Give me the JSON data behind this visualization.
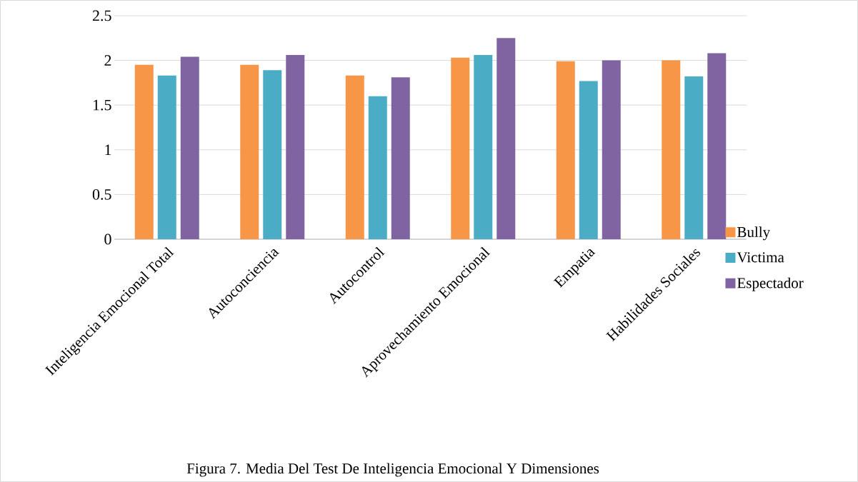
{
  "chart_data": {
    "type": "bar",
    "categories": [
      "Inteligencia Emocional Total",
      "Autoconciencia",
      "Autocontrol",
      "Aprovechamiento Emocional",
      "Empatia",
      "Habilidades Sociales"
    ],
    "series": [
      {
        "name": "Bully",
        "color": "#f79646",
        "values": [
          1.95,
          1.95,
          1.83,
          2.03,
          1.99,
          2.0
        ]
      },
      {
        "name": "Victima",
        "color": "#4bacc6",
        "values": [
          1.83,
          1.89,
          1.6,
          2.06,
          1.77,
          1.82
        ]
      },
      {
        "name": "Espectador",
        "color": "#8064a2",
        "values": [
          2.04,
          2.06,
          1.81,
          2.25,
          2.0,
          2.08
        ]
      }
    ],
    "ylim": [
      0,
      2.5
    ],
    "yticks": [
      0,
      0.5,
      1,
      1.5,
      2,
      2.5
    ],
    "grid": "y",
    "legend": "right",
    "annotations": [
      "Figura 7. Media Del Test De Inteligencia Emocional Y Dimensiones"
    ]
  }
}
